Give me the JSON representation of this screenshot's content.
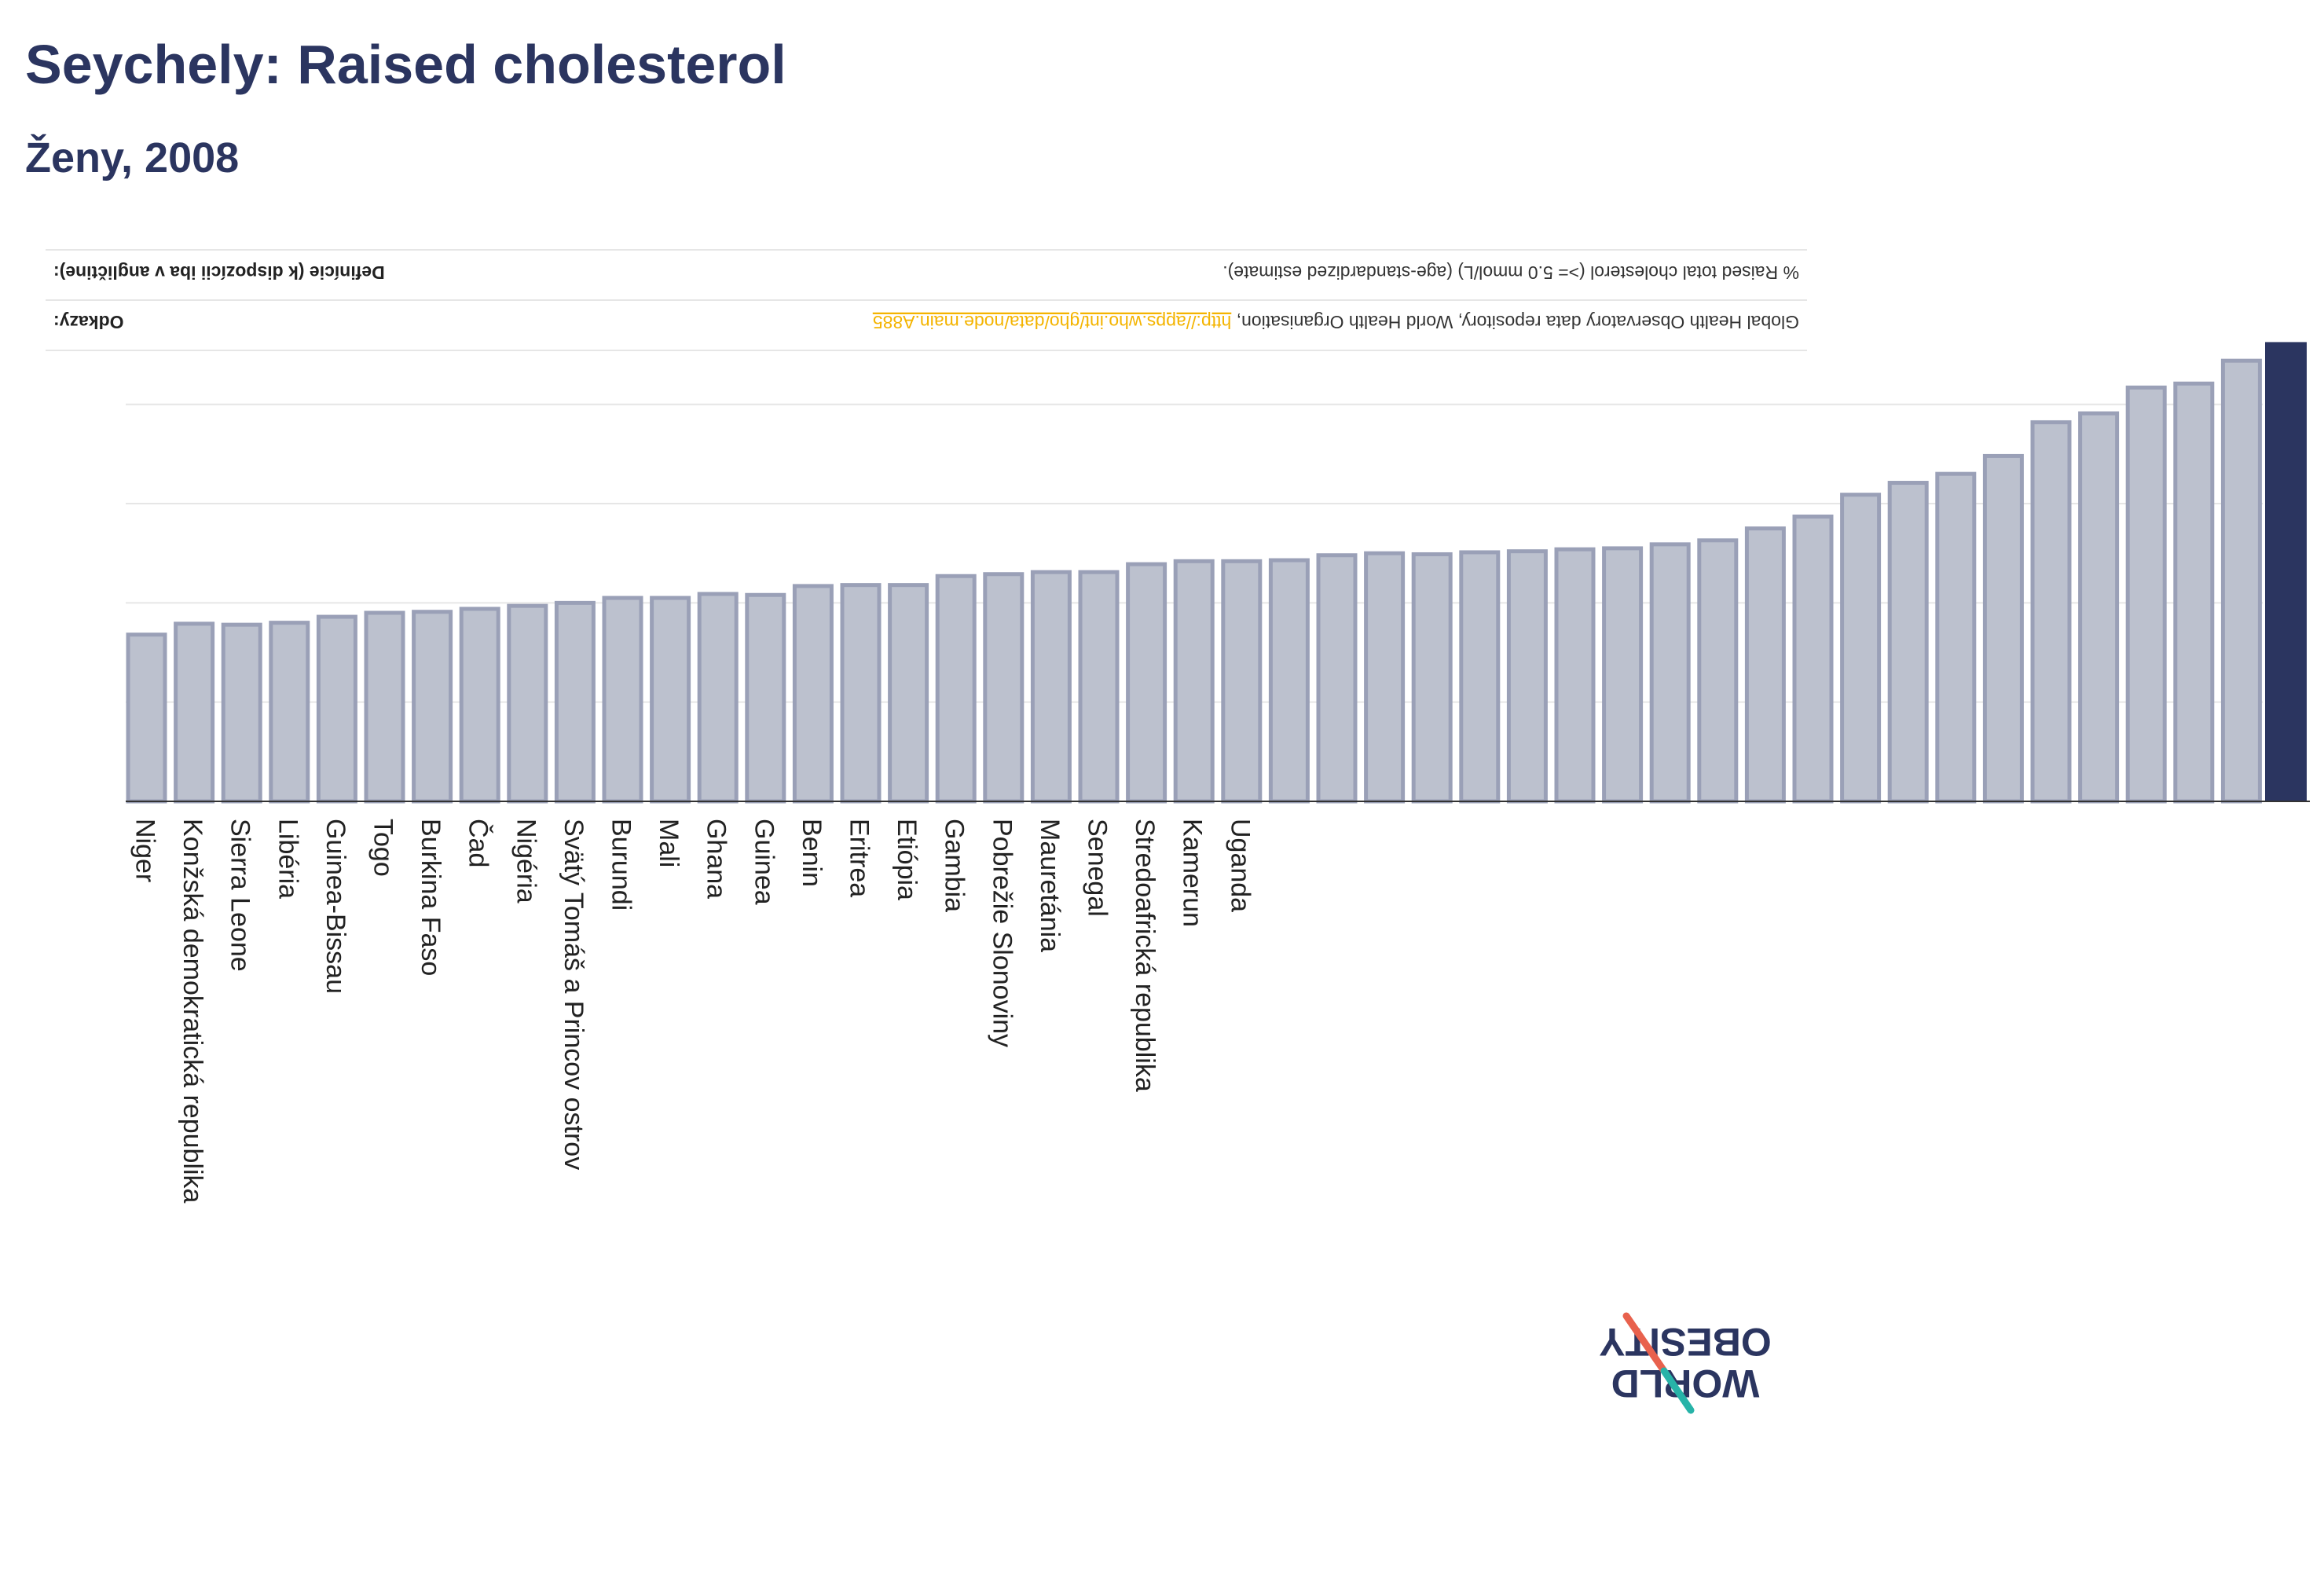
{
  "page": {
    "title": "Seychely: Raised cholesterol",
    "subtitle": "Ženy, 2008"
  },
  "info": {
    "definition_label": "Definície (k dispozícii iba v angličtine):",
    "definition_text": "% Raised total cholesterol (>= 5.0 mmol/L) (age-standardized estimate).",
    "references_label": "Odkazy:",
    "references_text": "Global Health Observatory data repository, World Health Organisation,",
    "references_link": "http://apps.who.int/gho/data/node.main.A885"
  },
  "logo": {
    "line1": "OBESITY",
    "line2": "WORLD"
  },
  "colors": {
    "bar_fill": "#bcc1ce",
    "bar_stroke": "#9aa0b7",
    "highlight": "#2b3560",
    "title": "#2b3560",
    "link": "#f4b400",
    "logo_red": "#e8614d",
    "logo_teal": "#27b3a8"
  },
  "chart_data": {
    "type": "bar",
    "title": "Seychely: Raised cholesterol",
    "subtitle": "Ženy, 2008",
    "grid": true,
    "highlight_index": 45,
    "ylim": [
      0,
      57
    ],
    "categories": [
      "Niger",
      "Konžská demokratická republika",
      "Sierra Leone",
      "Libéria",
      "Guinea-Bissau",
      "Togo",
      "Burkina Faso",
      "Čad",
      "Nigéria",
      "Svätý Tomáš a Princov ostrov",
      "Burundi",
      "Mali",
      "Ghana",
      "Guinea",
      "Benin",
      "Eritrea",
      "Etiópia",
      "Gambia",
      "Pobrežie Slonoviny",
      "Mauretánia",
      "Senegal",
      "Stredoafrická republika",
      "Kamerun",
      "Uganda",
      "",
      "",
      "",
      "",
      "",
      "",
      "",
      "",
      "",
      "",
      "",
      "",
      "",
      "",
      "",
      "",
      "",
      "",
      "",
      "",
      "",
      ""
    ],
    "values": [
      16.8,
      17.9,
      17.8,
      18.0,
      18.6,
      19.0,
      19.1,
      19.4,
      19.7,
      20.0,
      20.5,
      20.5,
      20.9,
      20.8,
      21.7,
      21.8,
      21.8,
      22.7,
      22.9,
      23.1,
      23.1,
      23.9,
      24.2,
      24.2,
      24.3,
      24.8,
      25.0,
      24.9,
      25.1,
      25.2,
      25.4,
      25.5,
      25.9,
      26.3,
      27.5,
      28.7,
      30.9,
      32.1,
      33.0,
      34.8,
      38.2,
      39.1,
      41.7,
      42.1,
      44.4,
      46.2
    ]
  }
}
